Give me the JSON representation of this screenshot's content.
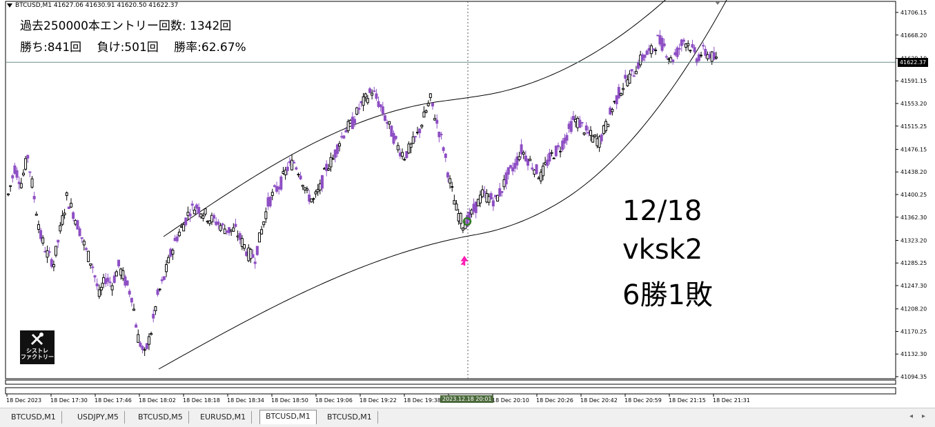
{
  "window": {
    "symbol_line": "BTCUSD,M1  41627.06 41630.91 41620.50 41622.37"
  },
  "stats": {
    "line1": "過去250000本エントリー回数: 1342回",
    "line2": "勝ち:841回　 負け:501回 　勝率:62.67%"
  },
  "memo": {
    "date": "12/18",
    "name": "vksk2",
    "result": "6勝1敗"
  },
  "logo": {
    "line1": "シストレ",
    "line2": "ファクトリー"
  },
  "price_axis": {
    "labels": [
      "41706.15",
      "41668.20",
      "41629.10",
      "41591.15",
      "41553.20",
      "41515.25",
      "41476.15",
      "41438.20",
      "41400.25",
      "41362.30",
      "41323.20",
      "41285.25",
      "41247.30",
      "41208.20",
      "41170.25",
      "41132.30",
      "41094.35"
    ],
    "current_price": "41622.37"
  },
  "time_axis": {
    "labels": [
      "18 Dec 2023",
      "18 Dec 17:30",
      "18 Dec 17:46",
      "18 Dec 18:02",
      "18 Dec 18:18",
      "18 Dec 18:34",
      "18 Dec 18:50",
      "18 Dec 19:06",
      "18 Dec 19:22",
      "18 Dec 19:38",
      "",
      "18 Dec 20:10",
      "18 Dec 20:26",
      "18 Dec 20:42",
      "18 Dec 20:59",
      "18 Dec 21:15",
      "18 Dec 21:31"
    ],
    "crosshair_label": "2023.12.18 20:01"
  },
  "tabs": [
    {
      "label": "BTCUSD,M1"
    },
    {
      "label": "USDJPY,M5"
    },
    {
      "label": "BTCUSD,M5"
    },
    {
      "label": "EURUSD,M1"
    },
    {
      "label": "BTCUSD,M1"
    },
    {
      "label": "BTCUSD,M1"
    }
  ],
  "active_tab_index": 4,
  "colors": {
    "up_candle": "#000000",
    "down_candle": "#8e4fc4",
    "signal_arrow": "#ff1fb4",
    "signal_circle": "#2f7d1f",
    "band_line": "#000000"
  },
  "chart_data": {
    "type": "candlestick",
    "symbol": "BTCUSD",
    "timeframe": "M1",
    "close_path": [
      41400,
      41445,
      41420,
      41465,
      41395,
      41330,
      41300,
      41285,
      41340,
      41395,
      41370,
      41340,
      41305,
      41280,
      41230,
      41260,
      41250,
      41280,
      41255,
      41230,
      41160,
      41130,
      41170,
      41230,
      41260,
      41300,
      41330,
      41350,
      41375,
      41380,
      41370,
      41360,
      41355,
      41345,
      41340,
      41340,
      41320,
      41300,
      41295,
      41340,
      41385,
      41405,
      41420,
      41445,
      41455,
      41435,
      41400,
      41390,
      41410,
      41445,
      41460,
      41490,
      41510,
      41520,
      41545,
      41560,
      41575,
      41555,
      41530,
      41505,
      41480,
      41465,
      41480,
      41500,
      41530,
      41560,
      41520,
      41480,
      41420,
      41375,
      41350,
      41360,
      41380,
      41400,
      41395,
      41390,
      41410,
      41435,
      41450,
      41475,
      41460,
      41445,
      41430,
      41455,
      41470,
      41480,
      41500,
      41525,
      41520,
      41505,
      41495,
      41490,
      41515,
      41545,
      41570,
      41590,
      41600,
      41620,
      41635,
      41640,
      41660,
      41650,
      41625,
      41640,
      41660,
      41650,
      41630,
      41640,
      41635,
      41625
    ],
    "y_range": [
      41094.35,
      41706.15
    ],
    "signals": [
      {
        "time": "2023.12.18 20:01",
        "type": "buy",
        "price": 41355
      }
    ],
    "current_price": 41622.37
  }
}
